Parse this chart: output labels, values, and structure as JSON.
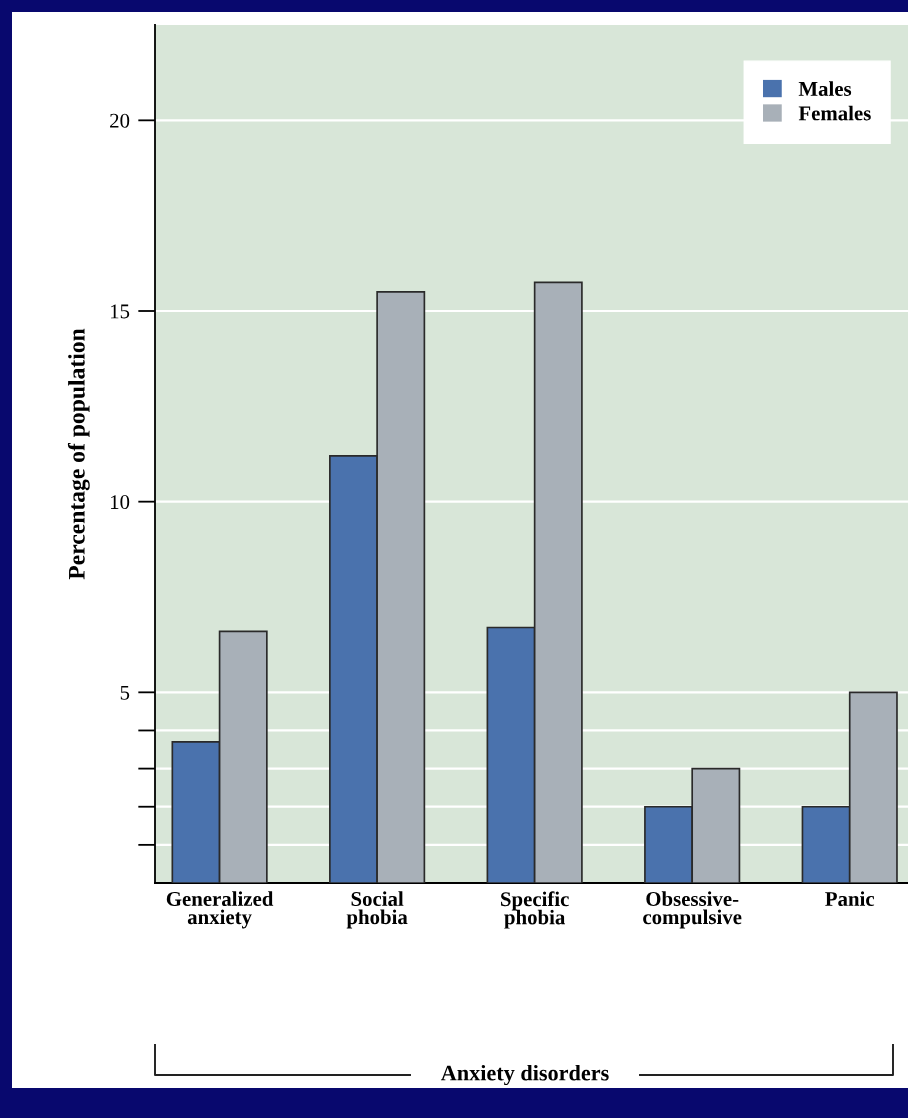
{
  "chart_data": {
    "type": "bar",
    "ylabel": "Percentage of population",
    "annotations": [
      "Anxiety disorders"
    ],
    "categories": [
      "Generalized\nanxiety",
      "Social\nphobia",
      "Specific\nphobia",
      "Obsessive-\ncompulsive",
      "Panic"
    ],
    "series": [
      {
        "name": "Males",
        "color": "#4a72ad",
        "values": [
          3.7,
          11.2,
          6.7,
          2,
          2
        ]
      },
      {
        "name": "Females",
        "color": "#a8b0b8",
        "values": [
          6.6,
          15.5,
          15.75,
          3,
          5
        ]
      }
    ],
    "ylim": [
      0,
      22.5
    ],
    "yticks": [
      {
        "value": 1,
        "label": null
      },
      {
        "value": 2,
        "label": null
      },
      {
        "value": 3,
        "label": null
      },
      {
        "value": 4,
        "label": null
      },
      5,
      10,
      15,
      20
    ],
    "grid": "y",
    "legend": "top right"
  }
}
